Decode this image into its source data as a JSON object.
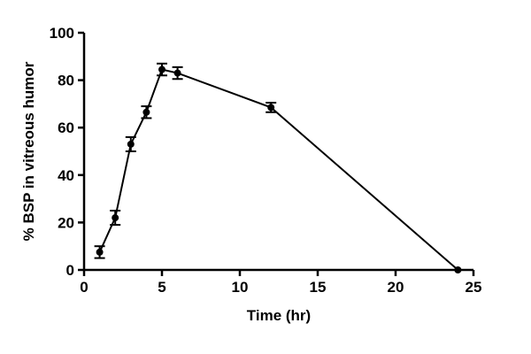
{
  "chart_data": {
    "type": "line",
    "title": "",
    "xlabel": "Time (hr)",
    "ylabel": "% BSP in vitreous humor",
    "xlim": [
      0,
      25
    ],
    "ylim": [
      0,
      100
    ],
    "x_ticks": [
      0,
      5,
      10,
      15,
      20,
      25
    ],
    "y_ticks": [
      0,
      20,
      40,
      60,
      80,
      100
    ],
    "grid": false,
    "legend": "none",
    "series": [
      {
        "x": [
          1,
          2,
          3,
          4,
          5,
          6,
          12,
          24
        ],
        "y": [
          7.5,
          22,
          53,
          66.5,
          84.5,
          83,
          68.5,
          0
        ],
        "error": [
          2.5,
          3,
          3,
          2.5,
          2.5,
          2.5,
          2,
          0
        ]
      }
    ]
  }
}
